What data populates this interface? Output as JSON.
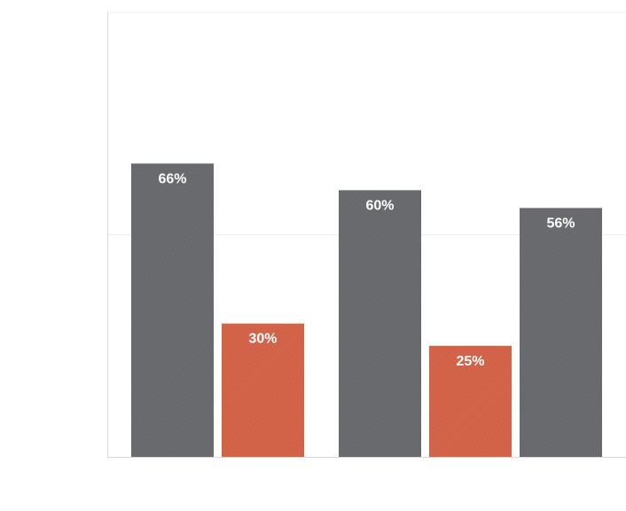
{
  "chart_data": {
    "type": "bar",
    "categories": [
      "",
      "",
      ""
    ],
    "series": [
      {
        "values": [
          66,
          60,
          56
        ],
        "color": "#6a6c70"
      },
      {
        "values": [
          30,
          25,
          null
        ],
        "color": "#d4654a"
      }
    ],
    "data_labels": {
      "series_0": [
        "66%",
        "60%",
        "56%"
      ],
      "series_1": [
        "30%",
        "25%",
        ""
      ]
    },
    "ylim": [
      0,
      100
    ],
    "gridline_values": [
      50,
      100
    ],
    "grid": true,
    "legend": "none",
    "colors": {
      "background": "#ffffff",
      "axis": "#d9d9d9",
      "grid": "#efefef",
      "label": "#ffffff"
    }
  }
}
